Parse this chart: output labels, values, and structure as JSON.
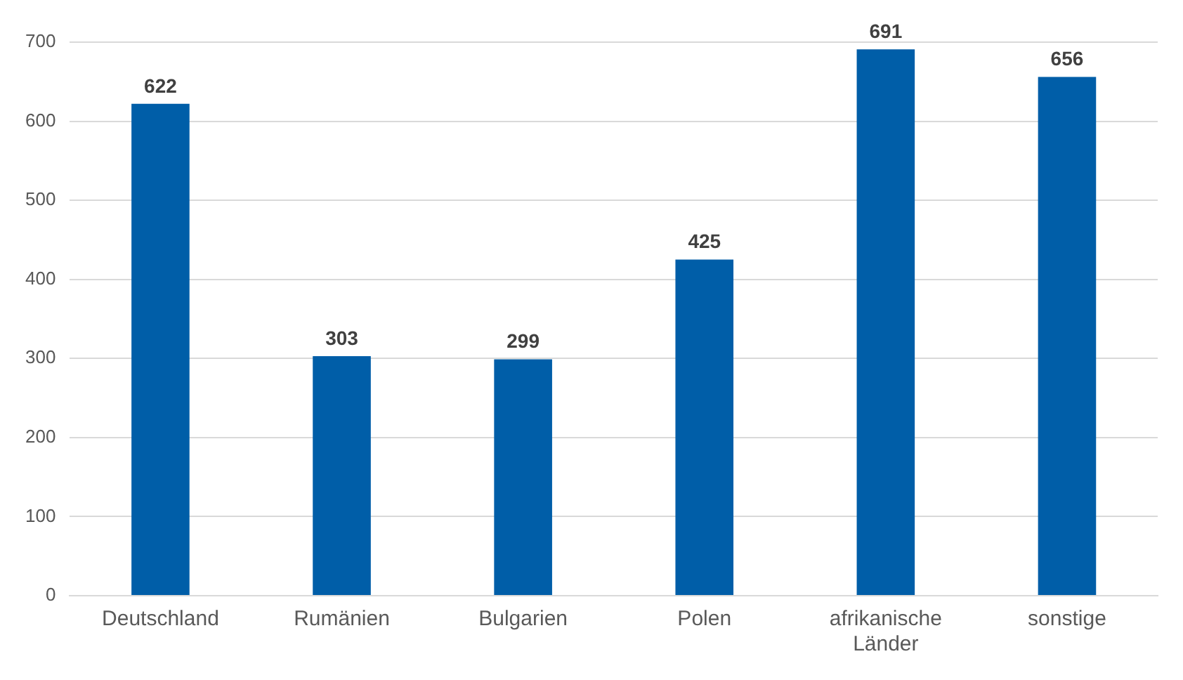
{
  "chart_data": {
    "type": "bar",
    "categories": [
      "Deutschland",
      "Rumänien",
      "Bulgarien",
      "Polen",
      "afrikanische Länder",
      "sonstige"
    ],
    "values": [
      622,
      303,
      299,
      425,
      691,
      656
    ],
    "color": "#005ea8",
    "ylim": [
      0,
      700
    ],
    "yticks": [
      0,
      100,
      200,
      300,
      400,
      500,
      600,
      700
    ],
    "grid": "y",
    "legend": false,
    "data_labels": true
  }
}
